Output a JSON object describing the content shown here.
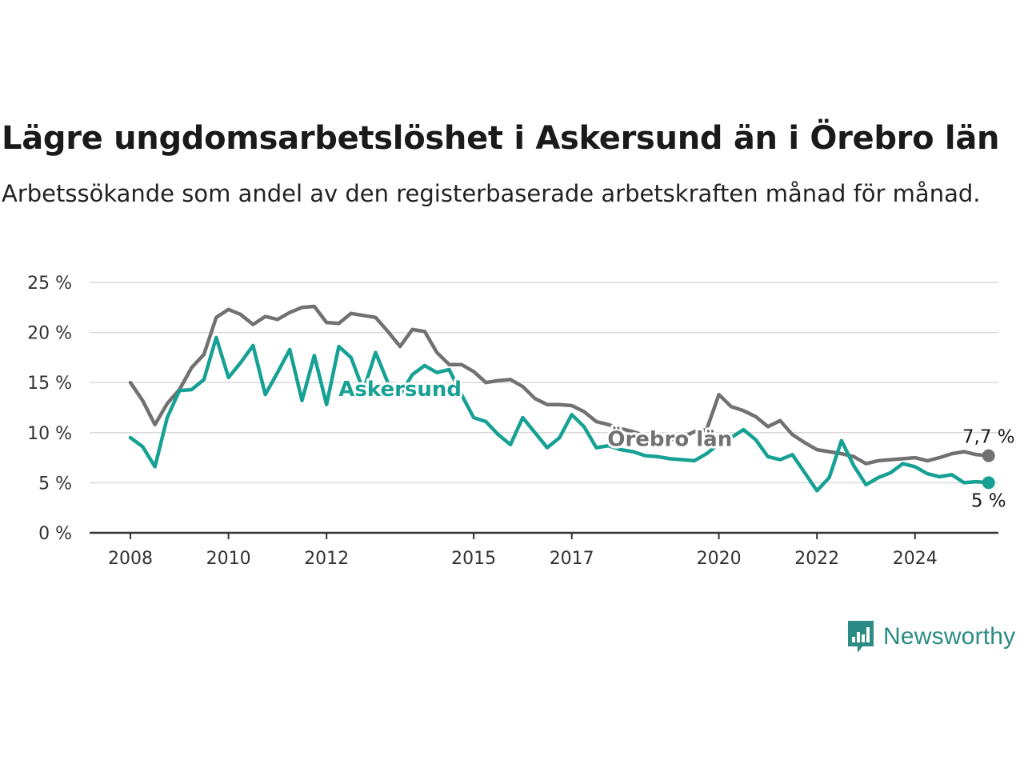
{
  "title": "Lägre ungdomsarbetslöshet i Askersund än i Örebro län",
  "subtitle": "Arbetssökande som andel av den registerbaserade arbetskraften månad för månad.",
  "brand": {
    "name": "Newsworthy",
    "icon": "newsworthy-logo-icon",
    "color": "#2a8c84"
  },
  "chart_data": {
    "type": "line",
    "x_start_year": 2008,
    "x_step": "quarter",
    "x_ticks": [
      "2008",
      "2010",
      "2012",
      "2015",
      "2017",
      "2020",
      "2022",
      "2024"
    ],
    "y_ticks": [
      "0 %",
      "5 %",
      "10 %",
      "15 %",
      "20 %",
      "25 %"
    ],
    "ylim": [
      0,
      25
    ],
    "xlim": [
      2008,
      2025.75
    ],
    "grid": true,
    "series": [
      {
        "name": "Askersund",
        "color": "#16a194",
        "end_label": "5 %",
        "values": [
          9.5,
          8.6,
          6.6,
          11.5,
          14.2,
          14.3,
          15.3,
          19.5,
          15.5,
          17.0,
          18.7,
          13.8,
          16.0,
          18.3,
          13.2,
          17.7,
          12.8,
          18.6,
          17.5,
          14.2,
          18.0,
          15.0,
          13.8,
          15.8,
          16.7,
          16.0,
          16.3,
          13.8,
          11.5,
          11.1,
          9.8,
          8.8,
          11.5,
          10.0,
          8.5,
          9.5,
          11.8,
          10.6,
          8.5,
          8.7,
          8.3,
          8.1,
          7.7,
          7.6,
          7.4,
          7.3,
          7.2,
          7.9,
          8.9,
          9.5,
          10.3,
          9.3,
          7.6,
          7.3,
          7.8,
          6.0,
          4.2,
          5.5,
          9.2,
          6.7,
          4.8,
          5.5,
          6.0,
          6.9,
          6.6,
          5.9,
          5.6,
          5.8,
          5.0,
          5.1,
          5.0
        ]
      },
      {
        "name": "Örebro län",
        "color": "#717171",
        "end_label": "7,7 %",
        "values": [
          15.0,
          13.2,
          10.8,
          12.9,
          14.3,
          16.5,
          17.8,
          21.5,
          22.3,
          21.8,
          20.8,
          21.6,
          21.3,
          22.0,
          22.5,
          22.6,
          21.0,
          20.9,
          21.9,
          21.7,
          21.5,
          20.1,
          18.6,
          20.3,
          20.1,
          18.0,
          16.8,
          16.8,
          16.1,
          15.0,
          15.2,
          15.3,
          14.6,
          13.4,
          12.8,
          12.8,
          12.7,
          12.1,
          11.1,
          10.8,
          10.4,
          10.1,
          9.7,
          9.5,
          9.3,
          9.5,
          10.1,
          10.3,
          13.8,
          12.6,
          12.2,
          11.6,
          10.6,
          11.2,
          9.8,
          9.0,
          8.3,
          8.1,
          7.9,
          7.6,
          6.9,
          7.2,
          7.3,
          7.4,
          7.5,
          7.2,
          7.5,
          7.9,
          8.1,
          7.8,
          7.7
        ]
      }
    ],
    "labels": {
      "Askersund": {
        "at_x": 2013.5,
        "text": "Askersund"
      },
      "Örebro län": {
        "at_x": 2019.0,
        "text": "Örebro län"
      }
    }
  }
}
